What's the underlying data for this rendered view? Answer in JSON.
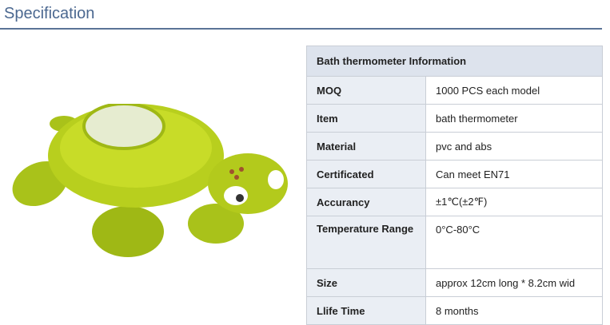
{
  "page_title": "Specification",
  "table": {
    "header": "Bath thermometer Information",
    "rows": [
      {
        "label": "MOQ",
        "value": "1000 PCS each model"
      },
      {
        "label": "Item",
        "value": "bath thermometer"
      },
      {
        "label": "Material",
        "value": "pvc and abs"
      },
      {
        "label": "Certificated",
        "value": "Can meet EN71"
      },
      {
        "label": "Accurancy",
        "value": "±1℃(±2℉)"
      },
      {
        "label": "Temperature Range",
        "value": "0°C-80°C"
      },
      {
        "label": "Size",
        "value": "approx 12cm long * 8.2cm wid"
      },
      {
        "label": "Llife Time",
        "value": "8 months"
      }
    ]
  }
}
